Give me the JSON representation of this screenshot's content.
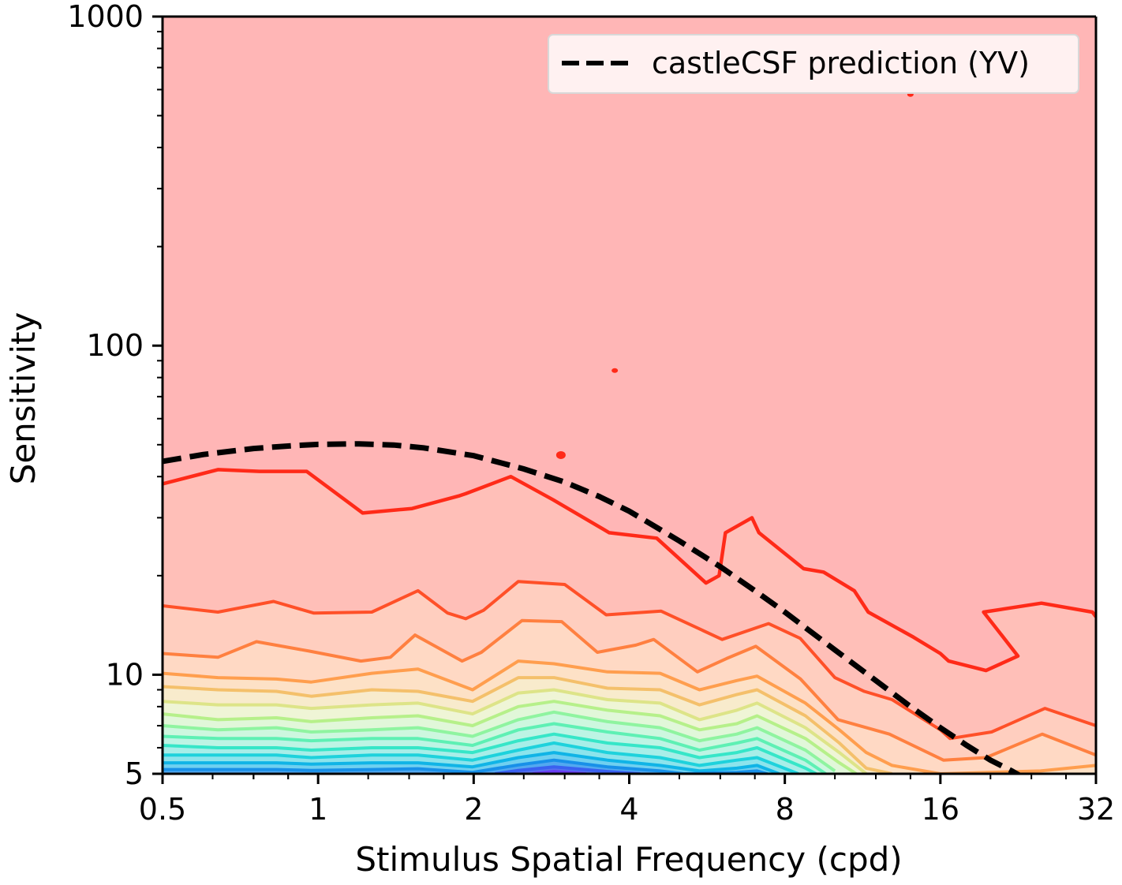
{
  "chart_data": {
    "type": "contour",
    "xlabel": "Stimulus Spatial Frequency (cpd)",
    "ylabel": "Sensitivity",
    "xscale": "log2",
    "yscale": "log10",
    "xlim": [
      0.5,
      32
    ],
    "ylim": [
      5,
      1000
    ],
    "x_ticks": [
      {
        "value": 0.5,
        "label": "0.5"
      },
      {
        "value": 1,
        "label": "1"
      },
      {
        "value": 2,
        "label": "2"
      },
      {
        "value": 4,
        "label": "4"
      },
      {
        "value": 8,
        "label": "8"
      },
      {
        "value": 16,
        "label": "16"
      },
      {
        "value": 32,
        "label": "32"
      }
    ],
    "y_ticks": [
      {
        "value": 5,
        "label": "5"
      },
      {
        "value": 10,
        "label": "10"
      },
      {
        "value": 100,
        "label": "100"
      },
      {
        "value": 1000,
        "label": "1000"
      }
    ],
    "background_color": "#ffb6b6",
    "contour_levels": [
      {
        "stroke": "#ff2a18",
        "fill": "#ffbfb8",
        "points": [
          [
            0.5,
            38
          ],
          [
            0.64,
            42
          ],
          [
            0.77,
            41.5
          ],
          [
            0.95,
            41.5
          ],
          [
            1.22,
            31
          ],
          [
            1.52,
            32
          ],
          [
            1.88,
            35
          ],
          [
            1.93,
            35.5
          ],
          [
            2.36,
            40
          ],
          [
            2.85,
            34
          ],
          [
            3.66,
            27
          ],
          [
            4.52,
            26
          ],
          [
            5.63,
            19
          ],
          [
            5.97,
            20
          ],
          [
            6.14,
            27
          ],
          [
            6.91,
            30
          ],
          [
            7.13,
            27
          ],
          [
            8.7,
            21
          ],
          [
            9.51,
            20.5
          ],
          [
            10.9,
            18
          ],
          [
            11.6,
            15.5
          ],
          [
            14.2,
            13
          ],
          [
            16.0,
            11.6
          ],
          [
            16.6,
            11
          ],
          [
            19.6,
            10.3
          ],
          [
            22.6,
            11.4
          ],
          [
            19.4,
            15.5
          ],
          [
            25.1,
            16.5
          ],
          [
            31.5,
            15.5
          ],
          [
            32,
            15
          ]
        ]
      },
      {
        "stroke": "#ff5028",
        "fill": "#ffcebf",
        "points": [
          [
            0.5,
            16.2
          ],
          [
            0.64,
            15.5
          ],
          [
            0.82,
            16.7
          ],
          [
            0.98,
            15.4
          ],
          [
            1.27,
            15.5
          ],
          [
            1.56,
            18
          ],
          [
            1.78,
            15.4
          ],
          [
            1.93,
            14.8
          ],
          [
            2.09,
            15.7
          ],
          [
            2.44,
            19.2
          ],
          [
            3.0,
            18.8
          ],
          [
            3.61,
            15.2
          ],
          [
            4.61,
            15.6
          ],
          [
            5.46,
            13.8
          ],
          [
            6.05,
            12.8
          ],
          [
            7.44,
            14.3
          ],
          [
            8.57,
            12.9
          ],
          [
            10.0,
            9.8
          ],
          [
            11.4,
            8.9
          ],
          [
            12.9,
            8.4
          ],
          [
            16.0,
            6.8
          ],
          [
            16.7,
            6.4
          ],
          [
            20.1,
            6.7
          ],
          [
            25.5,
            7.9
          ],
          [
            32,
            7.0
          ]
        ]
      },
      {
        "stroke": "#ff8040",
        "fill": "#ffd9c4",
        "points": [
          [
            0.5,
            11.6
          ],
          [
            0.64,
            11.3
          ],
          [
            0.76,
            12.6
          ],
          [
            0.96,
            11.8
          ],
          [
            1.21,
            11.0
          ],
          [
            1.38,
            11.3
          ],
          [
            1.54,
            13.2
          ],
          [
            1.9,
            11.0
          ],
          [
            2.07,
            11.7
          ],
          [
            2.48,
            14.6
          ],
          [
            2.96,
            14.5
          ],
          [
            3.47,
            11.7
          ],
          [
            4.12,
            12.3
          ],
          [
            4.46,
            12.8
          ],
          [
            5.42,
            10.2
          ],
          [
            6.17,
            11.2
          ],
          [
            7.03,
            12.2
          ],
          [
            8.58,
            9.7
          ],
          [
            10.14,
            7.3
          ],
          [
            12.75,
            6.6
          ],
          [
            16.22,
            5.5
          ],
          [
            19.6,
            5.6
          ],
          [
            25.2,
            6.6
          ],
          [
            32,
            5.7
          ]
        ]
      },
      {
        "stroke": "#ff9e4e",
        "fill": "#fde1c6",
        "points": [
          [
            0.5,
            10.1
          ],
          [
            0.64,
            9.8
          ],
          [
            0.83,
            9.7
          ],
          [
            0.97,
            9.5
          ],
          [
            1.27,
            10.1
          ],
          [
            1.56,
            10.4
          ],
          [
            1.99,
            9.0
          ],
          [
            2.44,
            11.0
          ],
          [
            2.86,
            10.8
          ],
          [
            3.63,
            10.2
          ],
          [
            4.59,
            10.1
          ],
          [
            5.47,
            9.0
          ],
          [
            6.46,
            9.6
          ],
          [
            7.07,
            9.9
          ],
          [
            8.77,
            8.2
          ],
          [
            10.2,
            6.8
          ],
          [
            11.5,
            5.8
          ],
          [
            12.9,
            5.3
          ],
          [
            16.0,
            5.0
          ],
          [
            25.0,
            5.1
          ],
          [
            32,
            5.3
          ]
        ]
      },
      {
        "stroke": "#f4c06b",
        "fill": "#f8ebcc",
        "points": [
          [
            0.5,
            9.2
          ],
          [
            0.64,
            9.0
          ],
          [
            0.83,
            8.9
          ],
          [
            0.97,
            8.6
          ],
          [
            1.27,
            9.0
          ],
          [
            1.56,
            8.9
          ],
          [
            1.99,
            8.3
          ],
          [
            2.44,
            9.8
          ],
          [
            2.86,
            9.8
          ],
          [
            3.63,
            9.1
          ],
          [
            4.59,
            9.0
          ],
          [
            5.47,
            8.1
          ],
          [
            6.46,
            8.7
          ],
          [
            7.07,
            9.0
          ],
          [
            8.77,
            7.5
          ],
          [
            10.2,
            6.2
          ],
          [
            11.5,
            5.2
          ],
          [
            12.9,
            5.0
          ]
        ]
      },
      {
        "stroke": "#dde488",
        "fill": "#eff5d6",
        "points": [
          [
            0.5,
            8.3
          ],
          [
            0.64,
            8.1
          ],
          [
            0.83,
            8.1
          ],
          [
            0.97,
            7.9
          ],
          [
            1.27,
            8.1
          ],
          [
            1.56,
            8.2
          ],
          [
            1.99,
            7.6
          ],
          [
            2.44,
            8.8
          ],
          [
            2.86,
            9.0
          ],
          [
            3.63,
            8.4
          ],
          [
            4.59,
            8.2
          ],
          [
            5.47,
            7.3
          ],
          [
            6.46,
            7.8
          ],
          [
            7.07,
            8.2
          ],
          [
            8.77,
            6.9
          ],
          [
            10.2,
            5.8
          ],
          [
            11.5,
            5.0
          ]
        ]
      },
      {
        "stroke": "#b6f08a",
        "fill": "#e1f7d9",
        "points": [
          [
            0.5,
            7.6
          ],
          [
            0.64,
            7.3
          ],
          [
            0.83,
            7.4
          ],
          [
            0.97,
            7.2
          ],
          [
            1.27,
            7.4
          ],
          [
            1.56,
            7.5
          ],
          [
            1.99,
            7.0
          ],
          [
            2.44,
            8.0
          ],
          [
            2.86,
            8.3
          ],
          [
            3.63,
            7.8
          ],
          [
            4.59,
            7.5
          ],
          [
            5.47,
            6.8
          ],
          [
            6.46,
            7.1
          ],
          [
            7.07,
            7.5
          ],
          [
            8.77,
            6.4
          ],
          [
            10.2,
            5.4
          ],
          [
            11.0,
            5.0
          ]
        ]
      },
      {
        "stroke": "#8ff4a0",
        "fill": "#cdf7df",
        "points": [
          [
            0.5,
            7.0
          ],
          [
            0.64,
            6.8
          ],
          [
            0.83,
            6.9
          ],
          [
            0.97,
            6.7
          ],
          [
            1.27,
            6.8
          ],
          [
            1.56,
            6.9
          ],
          [
            1.99,
            6.5
          ],
          [
            2.44,
            7.3
          ],
          [
            2.86,
            7.7
          ],
          [
            3.63,
            7.2
          ],
          [
            4.59,
            6.9
          ],
          [
            5.47,
            6.3
          ],
          [
            6.46,
            6.6
          ],
          [
            7.07,
            6.9
          ],
          [
            8.77,
            5.9
          ],
          [
            10.0,
            5.1
          ]
        ]
      },
      {
        "stroke": "#5ef0b4",
        "fill": "#bdf4e4",
        "points": [
          [
            0.5,
            6.5
          ],
          [
            0.64,
            6.4
          ],
          [
            0.83,
            6.4
          ],
          [
            0.97,
            6.3
          ],
          [
            1.27,
            6.4
          ],
          [
            1.56,
            6.4
          ],
          [
            1.99,
            6.1
          ],
          [
            2.44,
            6.8
          ],
          [
            2.86,
            7.1
          ],
          [
            3.63,
            6.7
          ],
          [
            4.59,
            6.4
          ],
          [
            5.47,
            5.9
          ],
          [
            6.46,
            6.2
          ],
          [
            7.07,
            6.4
          ],
          [
            8.77,
            5.5
          ],
          [
            9.6,
            5.0
          ]
        ]
      },
      {
        "stroke": "#36e6c8",
        "fill": "#a7eee8",
        "points": [
          [
            0.5,
            6.1
          ],
          [
            0.64,
            6.0
          ],
          [
            0.83,
            6.0
          ],
          [
            0.97,
            5.9
          ],
          [
            1.27,
            6.0
          ],
          [
            1.56,
            6.0
          ],
          [
            1.99,
            5.8
          ],
          [
            2.44,
            6.3
          ],
          [
            2.86,
            6.6
          ],
          [
            3.63,
            6.2
          ],
          [
            4.59,
            6.0
          ],
          [
            5.47,
            5.6
          ],
          [
            6.46,
            5.8
          ],
          [
            7.07,
            6.0
          ],
          [
            8.77,
            5.2
          ],
          [
            9.2,
            5.0
          ]
        ]
      },
      {
        "stroke": "#1ed2dc",
        "fill": "#8ce4ec",
        "points": [
          [
            0.5,
            5.7
          ],
          [
            0.64,
            5.7
          ],
          [
            0.83,
            5.7
          ],
          [
            0.97,
            5.6
          ],
          [
            1.27,
            5.7
          ],
          [
            1.56,
            5.7
          ],
          [
            1.99,
            5.5
          ],
          [
            2.44,
            5.9
          ],
          [
            2.86,
            6.2
          ],
          [
            3.63,
            5.8
          ],
          [
            4.59,
            5.6
          ],
          [
            5.47,
            5.3
          ],
          [
            6.46,
            5.5
          ],
          [
            7.07,
            5.6
          ],
          [
            8.5,
            5.0
          ]
        ]
      },
      {
        "stroke": "#10b4e6",
        "fill": "#6fd0f0",
        "points": [
          [
            0.5,
            5.4
          ],
          [
            0.64,
            5.4
          ],
          [
            0.83,
            5.4
          ],
          [
            0.97,
            5.35
          ],
          [
            1.27,
            5.4
          ],
          [
            1.56,
            5.4
          ],
          [
            1.99,
            5.25
          ],
          [
            2.44,
            5.6
          ],
          [
            2.86,
            5.8
          ],
          [
            3.63,
            5.5
          ],
          [
            4.59,
            5.3
          ],
          [
            5.47,
            5.1
          ],
          [
            6.46,
            5.2
          ],
          [
            7.07,
            5.3
          ],
          [
            7.8,
            5.0
          ]
        ]
      },
      {
        "stroke": "#1890e8",
        "fill": "#52a8f0",
        "points": [
          [
            0.5,
            5.15
          ],
          [
            0.64,
            5.15
          ],
          [
            0.83,
            5.15
          ],
          [
            0.97,
            5.12
          ],
          [
            1.27,
            5.15
          ],
          [
            1.56,
            5.18
          ],
          [
            1.99,
            5.05
          ],
          [
            2.44,
            5.32
          ],
          [
            2.86,
            5.5
          ],
          [
            3.63,
            5.25
          ],
          [
            4.59,
            5.1
          ],
          [
            5.1,
            5.0
          ],
          [
            6.46,
            5.05
          ],
          [
            7.07,
            5.1
          ],
          [
            7.4,
            5.0
          ]
        ]
      },
      {
        "stroke": "#3a60f0",
        "fill": "#5870ee",
        "points": [
          [
            2.2,
            5.0
          ],
          [
            2.44,
            5.12
          ],
          [
            2.86,
            5.25
          ],
          [
            3.63,
            5.08
          ],
          [
            4.2,
            5.0
          ]
        ]
      },
      {
        "stroke": "#6a3cf4",
        "fill": "#6e50f0",
        "points": [
          [
            2.6,
            5.0
          ],
          [
            2.86,
            5.08
          ],
          [
            3.3,
            5.0
          ]
        ]
      }
    ],
    "contour_islands": [
      [
        14.0,
        580
      ],
      [
        3.75,
        84
      ],
      [
        2.95,
        46.5
      ]
    ],
    "series": [
      {
        "name": "castleCSF prediction (YV)",
        "style": "dashed",
        "color": "#000000",
        "points": [
          [
            0.5,
            44.5
          ],
          [
            0.6,
            46.7
          ],
          [
            0.75,
            48.7
          ],
          [
            0.9,
            49.7
          ],
          [
            1.0,
            50.1
          ],
          [
            1.2,
            50.3
          ],
          [
            1.4,
            49.9
          ],
          [
            1.6,
            48.9
          ],
          [
            2.0,
            46.3
          ],
          [
            2.5,
            42.2
          ],
          [
            3.0,
            38.5
          ],
          [
            3.5,
            34.8
          ],
          [
            4.0,
            31.4
          ],
          [
            5.0,
            25.5
          ],
          [
            6.0,
            21.3
          ],
          [
            7.0,
            18.0
          ],
          [
            8.0,
            15.5
          ],
          [
            10.0,
            11.9
          ],
          [
            12.0,
            9.6
          ],
          [
            14.0,
            8.0
          ],
          [
            16.0,
            6.9
          ],
          [
            18.0,
            6.1
          ],
          [
            20.0,
            5.5
          ],
          [
            22.0,
            5.1
          ],
          [
            23.0,
            4.9
          ]
        ]
      }
    ],
    "legend": {
      "position": "top-right"
    },
    "grid": false
  }
}
